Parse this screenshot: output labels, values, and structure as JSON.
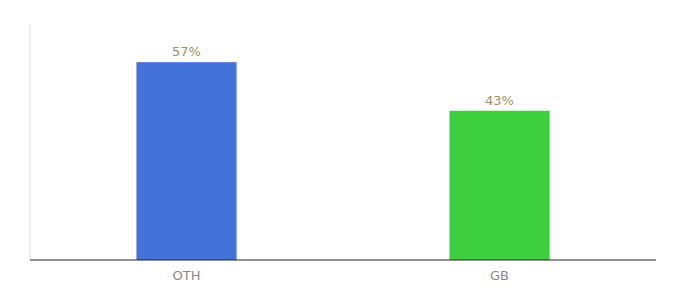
{
  "chart_data": {
    "type": "bar",
    "categories": [
      "OTH",
      "GB"
    ],
    "values": [
      57,
      43
    ],
    "value_labels": [
      "57%",
      "43%"
    ],
    "colors": [
      "#4472db",
      "#3ecf3e"
    ],
    "ylim": [
      0,
      68
    ],
    "data_labels": true,
    "tick_labels": "x",
    "grid": false
  }
}
